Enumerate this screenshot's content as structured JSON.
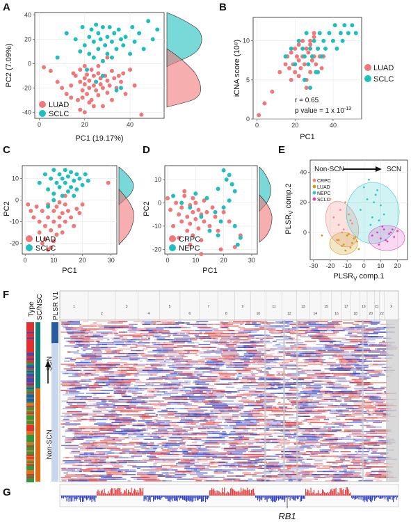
{
  "colors": {
    "luad": "#f0787a",
    "sclc": "#1fbfbf",
    "crpc": "#f0787a",
    "nepc": "#1fbfbf",
    "e_crpc": "#f08a80",
    "e_luad": "#c8a020",
    "e_nepc": "#30c8c8",
    "e_sclc": "#e040c0",
    "heat_red": "#e04040",
    "heat_blue": "#3040c0"
  },
  "panels": {
    "A": {
      "label": "A",
      "xlabel": "PC1 (19.17%)",
      "ylabel": "PC2 (7.09%)",
      "xticks": [
        "0",
        "20",
        "40"
      ],
      "yticks": [
        "40",
        "20",
        "0",
        "-20",
        "-40"
      ],
      "legend": [
        "LUAD",
        "SCLC"
      ]
    },
    "B": {
      "label": "B",
      "xlabel": "PC1",
      "ylabel": "iCNA score (10⁸)",
      "xticks": [
        "0",
        "20",
        "40"
      ],
      "yticks": [
        "10",
        "5",
        "0"
      ],
      "legend": [
        "LUAD",
        "SCLC"
      ],
      "annot_r": "r = 0.65",
      "annot_p": "p value = 1 x 10",
      "annot_p_exp": "-13"
    },
    "C": {
      "label": "C",
      "xlabel": "PC1",
      "ylabel": "PC2",
      "xticks": [
        "0",
        "10",
        "20",
        "30"
      ],
      "yticks": [
        "10",
        "0",
        "-10",
        "-20"
      ],
      "legend": [
        "LUAD",
        "SCLC"
      ]
    },
    "D": {
      "label": "D",
      "xlabel": "PC1",
      "ylabel": "PC2",
      "xticks": [
        "0",
        "10",
        "20",
        "30"
      ],
      "yticks": [
        "10",
        "0",
        "-10",
        "-20"
      ],
      "legend": [
        "CRPC",
        "NEPC"
      ]
    },
    "E": {
      "label": "E",
      "xlabel": "PLSR",
      "xlabel_sub": "V",
      "xlabel_rest": " comp.1",
      "ylabel": "PLSR",
      "ylabel_sub": "V",
      "ylabel_rest": " comp.2",
      "xticks": [
        "-30",
        "-20",
        "-10",
        "0",
        "10",
        "20"
      ],
      "yticks": [
        "40",
        "20",
        "0"
      ],
      "legend": [
        "CRPC",
        "LUAD",
        "NEPC",
        "SCLC"
      ],
      "arrow_left": "Non-SCN",
      "arrow_right": "SCN"
    },
    "F": {
      "label": "F",
      "col_type": "Type",
      "col_scnsc": "SC/NSC",
      "col_plsr": "PLSR V1",
      "side_top": "SCN",
      "side_bottom": "Non-SCN",
      "chroms": [
        "1",
        "2",
        "3",
        "4",
        "5",
        "6",
        "7",
        "8",
        "9",
        "10",
        "11",
        "12",
        "13",
        "14",
        "15",
        "16",
        "17",
        "18",
        "19",
        "20",
        "21",
        "22",
        "X"
      ]
    },
    "G": {
      "label": "G",
      "gene": "RB1"
    }
  },
  "chart_data": [
    {
      "type": "scatter",
      "panel": "A",
      "xlabel": "PC1 (19.17%)",
      "ylabel": "PC2 (7.09%)",
      "xlim": [
        -2,
        55
      ],
      "ylim": [
        -45,
        42
      ],
      "series": [
        {
          "name": "LUAD",
          "x": [
            2,
            5,
            8,
            10,
            12,
            14,
            15,
            16,
            17,
            18,
            18,
            19,
            19,
            20,
            20,
            21,
            21,
            22,
            22,
            23,
            23,
            24,
            24,
            25,
            25,
            26,
            26,
            27,
            27,
            28,
            28,
            29,
            30,
            30,
            31,
            32,
            33,
            34,
            35,
            36,
            37,
            38,
            40,
            42,
            45,
            22,
            24,
            26,
            18,
            20,
            14,
            28,
            30,
            20,
            32
          ],
          "y": [
            -3,
            -6,
            -15,
            -20,
            -25,
            -18,
            -8,
            -10,
            -30,
            -15,
            -5,
            -22,
            -28,
            -12,
            -17,
            -9,
            -25,
            -14,
            -20,
            -5,
            -30,
            -10,
            -18,
            -15,
            -22,
            -8,
            -26,
            -12,
            -17,
            -20,
            -35,
            -10,
            -14,
            -24,
            -18,
            -6,
            -12,
            -20,
            -10,
            -15,
            -8,
            -25,
            -5,
            -18,
            -42,
            -32,
            -35,
            -2,
            -38,
            -40,
            -28,
            2,
            5,
            -2,
            -30
          ]
        },
        {
          "name": "SCLC",
          "x": [
            8,
            12,
            16,
            18,
            19,
            20,
            21,
            22,
            22,
            23,
            24,
            24,
            25,
            26,
            26,
            27,
            28,
            28,
            29,
            30,
            30,
            31,
            32,
            32,
            33,
            34,
            35,
            36,
            36,
            37,
            38,
            40,
            41,
            42,
            44,
            46,
            48,
            50,
            52,
            25,
            28,
            34
          ],
          "y": [
            5,
            25,
            20,
            10,
            30,
            15,
            -5,
            22,
            8,
            28,
            18,
            5,
            32,
            12,
            25,
            20,
            2,
            30,
            15,
            22,
            8,
            30,
            18,
            5,
            25,
            12,
            28,
            20,
            -20,
            15,
            22,
            8,
            30,
            18,
            25,
            12,
            35,
            20,
            28,
            -15,
            -10,
            -22
          ]
        }
      ]
    },
    {
      "type": "scatter",
      "panel": "B",
      "xlabel": "PC1",
      "ylabel": "iCNA score (10⁸)",
      "xlim": [
        -2,
        55
      ],
      "ylim": [
        0,
        13
      ],
      "series": [
        {
          "name": "LUAD",
          "x": [
            1,
            4,
            8,
            12,
            15,
            16,
            17,
            18,
            19,
            20,
            20,
            21,
            22,
            22,
            23,
            24,
            24,
            25,
            26,
            26,
            27,
            28,
            28,
            29,
            30,
            30,
            31,
            32,
            33,
            34,
            35,
            18,
            22,
            26,
            28,
            30
          ],
          "y": [
            0.5,
            2,
            3.5,
            6,
            7,
            8,
            6.5,
            8.5,
            7,
            9,
            6,
            8,
            7.5,
            9.5,
            6.5,
            8,
            10,
            7,
            9,
            5,
            8.5,
            6,
            9.5,
            7.5,
            8,
            10.5,
            7,
            9,
            8,
            6.5,
            8,
            5,
            5.5,
            4,
            10,
            11
          ]
        },
        {
          "name": "SCLC",
          "x": [
            15,
            18,
            20,
            22,
            24,
            25,
            26,
            27,
            28,
            29,
            30,
            31,
            32,
            33,
            34,
            35,
            36,
            38,
            40,
            41,
            42,
            44,
            45,
            46,
            48,
            50,
            52,
            25,
            28,
            32
          ],
          "y": [
            8,
            9,
            7,
            10,
            9,
            8,
            11,
            7,
            9,
            8,
            10,
            6,
            9,
            11,
            8,
            10,
            9,
            11,
            10,
            12,
            9,
            11,
            10,
            12,
            11,
            12,
            11,
            5,
            4,
            6
          ]
        }
      ]
    },
    {
      "type": "scatter",
      "panel": "C",
      "xlabel": "PC1",
      "ylabel": "PC2",
      "xlim": [
        -1,
        32
      ],
      "ylim": [
        -25,
        16
      ],
      "series": [
        {
          "name": "LUAD",
          "x": [
            1,
            2,
            3,
            4,
            5,
            5,
            6,
            7,
            7,
            8,
            8,
            9,
            9,
            10,
            10,
            11,
            11,
            12,
            12,
            13,
            13,
            14,
            14,
            15,
            16,
            17,
            18,
            19,
            20,
            29,
            6,
            8,
            10,
            12,
            14
          ],
          "y": [
            -2,
            -5,
            -8,
            -3,
            -10,
            -15,
            -5,
            -12,
            -18,
            -2,
            -8,
            -14,
            -22,
            -5,
            -10,
            -16,
            -3,
            -8,
            -12,
            -6,
            -15,
            -2,
            -10,
            -5,
            -8,
            -12,
            -4,
            -6,
            -2,
            8,
            -20,
            -23,
            -19,
            -1,
            2
          ]
        },
        {
          "name": "SCLC",
          "x": [
            5,
            7,
            8,
            9,
            10,
            10,
            11,
            12,
            12,
            13,
            13,
            14,
            14,
            15,
            15,
            16,
            16,
            17,
            17,
            18,
            18,
            19,
            20,
            21,
            22,
            8,
            10
          ],
          "y": [
            8,
            12,
            5,
            10,
            14,
            3,
            8,
            12,
            6,
            10,
            2,
            14,
            8,
            4,
            11,
            13,
            6,
            9,
            2,
            12,
            5,
            10,
            7,
            12,
            9,
            -3,
            0
          ]
        }
      ]
    },
    {
      "type": "scatter",
      "panel": "D",
      "xlabel": "PC1",
      "ylabel": "PC2",
      "xlim": [
        -1,
        32
      ],
      "ylim": [
        -22,
        16
      ],
      "series": [
        {
          "name": "CRPC",
          "x": [
            0,
            1,
            2,
            3,
            4,
            5,
            5,
            6,
            7,
            7,
            8,
            8,
            9,
            9,
            10,
            10,
            11,
            11,
            12,
            12,
            13,
            13,
            14,
            15,
            16,
            17,
            18,
            19,
            20,
            22,
            24,
            26,
            6,
            9,
            12,
            4,
            8
          ],
          "y": [
            2,
            -3,
            -10,
            0,
            -5,
            -2,
            -8,
            3,
            -6,
            -12,
            -1,
            -9,
            -4,
            -14,
            0,
            -7,
            -3,
            -11,
            -5,
            -16,
            1,
            -8,
            -4,
            -10,
            -2,
            -6,
            -12,
            -20,
            -4,
            -8,
            -19,
            -14,
            5,
            2,
            -22,
            -15,
            -18
          ]
        },
        {
          "name": "NEPC",
          "x": [
            2,
            5,
            8,
            10,
            12,
            14,
            15,
            17,
            18,
            19,
            20,
            21,
            22,
            23,
            24,
            25,
            20,
            22,
            24,
            26,
            18
          ],
          "y": [
            3,
            0,
            -2,
            4,
            -6,
            2,
            -12,
            -4,
            6,
            -8,
            14,
            10,
            12,
            8,
            -10,
            -18,
            -2,
            1,
            5,
            -15,
            -14
          ]
        }
      ]
    },
    {
      "type": "scatter",
      "panel": "E",
      "xlabel": "PLSRV comp.1",
      "ylabel": "PLSRV comp.2",
      "xlim": [
        -32,
        26
      ],
      "ylim": [
        -18,
        48
      ],
      "series": [
        {
          "name": "CRPC",
          "x": [
            -18,
            -15,
            -12,
            -10,
            -8,
            -14,
            -16,
            -11,
            -9,
            -13,
            -20,
            -7
          ],
          "y": [
            10,
            5,
            2,
            -2,
            8,
            15,
            -5,
            20,
            12,
            0,
            22,
            6
          ]
        },
        {
          "name": "LUAD",
          "x": [
            -15,
            -12,
            -10,
            -8,
            -6,
            -4,
            -11,
            -9,
            -7,
            -5,
            -13,
            -3,
            -25
          ],
          "y": [
            -5,
            -8,
            -2,
            -10,
            -4,
            -6,
            -12,
            -1,
            -7,
            -3,
            -9,
            -11,
            -2
          ]
        },
        {
          "name": "NEPC",
          "x": [
            -2,
            2,
            5,
            8,
            10,
            12,
            3,
            6,
            9,
            0,
            4,
            7
          ],
          "y": [
            15,
            22,
            10,
            28,
            18,
            12,
            35,
            20,
            8,
            30,
            5,
            25
          ]
        },
        {
          "name": "SCLC",
          "x": [
            5,
            8,
            10,
            12,
            14,
            16,
            18,
            20,
            9,
            11,
            15,
            13,
            17
          ],
          "y": [
            -2,
            0,
            -4,
            2,
            -6,
            0,
            -3,
            1,
            -8,
            4,
            -1,
            -5,
            2
          ]
        }
      ]
    }
  ]
}
